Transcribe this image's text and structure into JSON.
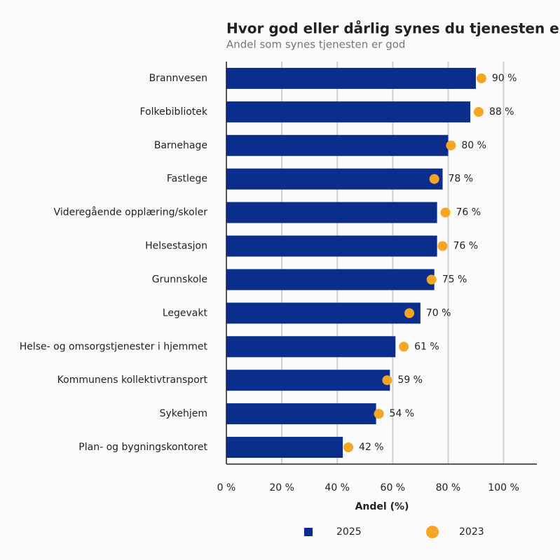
{
  "chart_data": {
    "type": "bar_dot",
    "title": "Hvor god eller dårlig synes du tjenesten er?",
    "subtitle": "Andel som synes tjenesten er god",
    "x_label": "Andel (%)",
    "categories": [
      "Brannvesen",
      "Folkebibliotek",
      "Barnehage",
      "Fastlege",
      "Videregående opplæring/skoler",
      "Helsestasjon",
      "Grunnskole",
      "Legevakt",
      "Helse- og omsorgstjenester i hjemmet",
      "Kommunens kollektivtransport",
      "Sykehjem",
      "Plan- og bygningskontoret"
    ],
    "series": [
      {
        "name": "2025",
        "color": "#0b2d8c",
        "values": [
          90,
          88,
          80,
          78,
          76,
          76,
          75,
          70,
          61,
          59,
          54,
          42
        ],
        "value_labels": [
          "90 %",
          "88 %",
          "80 %",
          "78 %",
          "76 %",
          "76 %",
          "75 %",
          "70 %",
          "61 %",
          "59 %",
          "54 %",
          "42 %"
        ]
      },
      {
        "name": "2023",
        "color": "#f5a623",
        "values": [
          92,
          91,
          81,
          75,
          79,
          78,
          74,
          66,
          64,
          58,
          55,
          44
        ]
      }
    ],
    "xlim": [
      0,
      112
    ],
    "xticks": [
      {
        "value": 0,
        "label": "0 %"
      },
      {
        "value": 20,
        "label": "20 %"
      },
      {
        "value": 40,
        "label": "40 %"
      },
      {
        "value": 60,
        "label": "60 %"
      },
      {
        "value": 80,
        "label": "80 %"
      },
      {
        "value": 100,
        "label": "100 %"
      }
    ],
    "grid": true
  }
}
